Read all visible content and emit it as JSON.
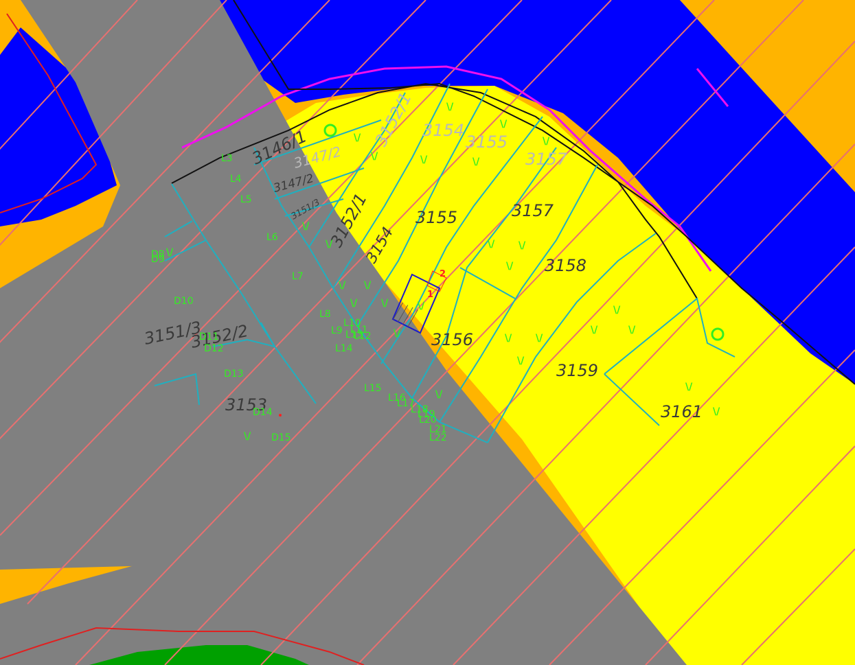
{
  "colors": {
    "zone_blue": "#0000ff",
    "zone_orange": "#ffb400",
    "zone_yellow": "#ffff00",
    "road_gray": "#808080",
    "forest_green": "#00a000",
    "hatch_salmon": "#e87070",
    "parcel_cyan": "#1fb0c0",
    "boundary_black": "#111111",
    "boundary_magenta": "#ee10ee",
    "limit_red": "#e02020",
    "label_green": "#33ee22",
    "building_blue": "#1a1acc"
  },
  "parcels": {
    "p3146_1": "3146/1",
    "p3147_2_upper": "3147/2",
    "p3147_2": "3147/2",
    "p3151_3_small": "3151/3",
    "p3152_1_upper": "3152/1",
    "p3152_1": "3152/1",
    "p3154_upper": "3154",
    "p3154": "3154",
    "p3155_upper": "3155",
    "p3155": "3155",
    "p3157_upper": "3157",
    "p3157": "3157",
    "p3158": "3158",
    "p3156": "3156",
    "p3159": "3159",
    "p3161": "3161",
    "p3151_3": "3151/3",
    "p3152_2": "3152/2",
    "p3153": "3153"
  },
  "line_labels": {
    "L3": "L3",
    "L4": "L4",
    "L5": "L5",
    "L6": "L6",
    "L7": "L7",
    "L8": "L8",
    "L9": "L9",
    "L10": "L10",
    "L11": "L11",
    "L12": "L12",
    "L13": "L13",
    "L14": "L14",
    "L15": "L15",
    "L16": "L16",
    "L17": "L17",
    "L18": "L18",
    "L19": "L19",
    "L20": "L20",
    "L21": "L21",
    "L22": "L22",
    "D8": "D8",
    "D9": "D9",
    "D10": "D10",
    "D11": "D11",
    "D12": "D12",
    "D13": "D13",
    "D14": "D14",
    "D15": "D15"
  },
  "vegetation_mark": "\\/",
  "building_labels": {
    "b1": "1",
    "b2": "2"
  }
}
